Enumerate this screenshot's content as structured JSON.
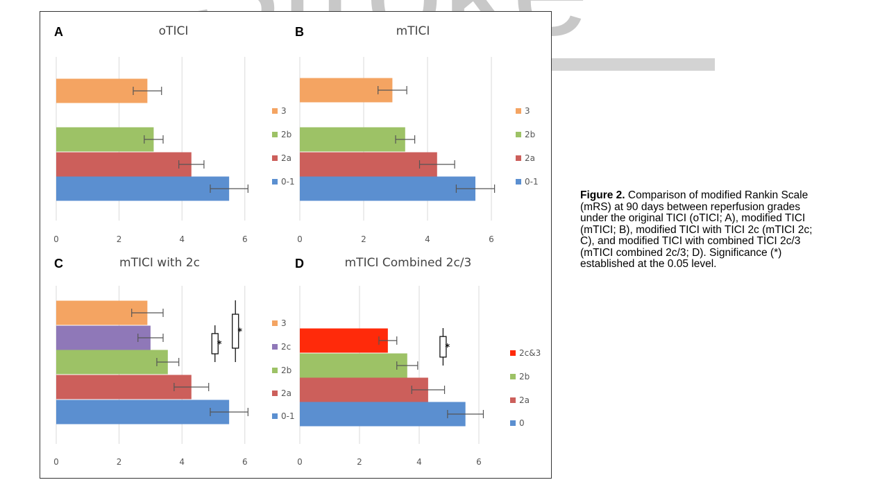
{
  "watermark": {
    "text": "Stroke"
  },
  "caption": {
    "label": "Figure 2.",
    "text": " Comparison of modified Rankin Scale (mRS) at 90 days between reperfusion grades under the original TICI (oTICI; A), modified TICI (mTICI; B), modified TICI with TICI 2c (mTICI 2c; C), and modified TICI with combined TICI 2c/3 (mTICI combined 2c/3; D). Significance (*) established at the 0.05 level."
  },
  "colors": {
    "c0_1": "#5b8fd0",
    "c2a": "#cc5f5b",
    "c2b": "#9dc266",
    "c2c": "#8f78b8",
    "c3": "#f4a462",
    "c2c3": "#ff2a0a",
    "grid": "#d9d9d9",
    "errorbar": "#555555"
  },
  "chart_data": [
    {
      "panel": "A",
      "title": "oTICI",
      "type": "bar",
      "orientation": "horizontal",
      "xlim": [
        0,
        6
      ],
      "xticks": [
        0,
        2,
        4,
        6
      ],
      "grid": true,
      "legend": "right",
      "bars": [
        {
          "label": "3",
          "value": 2.9,
          "error": 0.45,
          "color": "#f4a462"
        },
        {
          "label": "2b",
          "value": 3.1,
          "error": 0.3,
          "color": "#9dc266"
        },
        {
          "label": "2a",
          "value": 4.3,
          "error": 0.4,
          "color": "#cc5f5b"
        },
        {
          "label": "0-1",
          "value": 5.5,
          "error": 0.6,
          "color": "#5b8fd0"
        }
      ],
      "legend_entries": [
        {
          "label": "3",
          "color": "#f4a462"
        },
        {
          "label": "2b",
          "color": "#9dc266"
        },
        {
          "label": "2a",
          "color": "#cc5f5b"
        },
        {
          "label": "0-1",
          "color": "#5b8fd0"
        }
      ],
      "significance": []
    },
    {
      "panel": "B",
      "title": "mTICI",
      "type": "bar",
      "orientation": "horizontal",
      "xlim": [
        0,
        6
      ],
      "xticks": [
        0,
        2,
        4,
        6
      ],
      "grid": true,
      "legend": "right",
      "bars": [
        {
          "label": "3",
          "value": 2.9,
          "error": 0.45,
          "color": "#f4a462"
        },
        {
          "label": "2b",
          "value": 3.3,
          "error": 0.3,
          "color": "#9dc266"
        },
        {
          "label": "2a",
          "value": 4.3,
          "error": 0.55,
          "color": "#cc5f5b"
        },
        {
          "label": "0-1",
          "value": 5.5,
          "error": 0.6,
          "color": "#5b8fd0"
        }
      ],
      "legend_entries": [
        {
          "label": "3",
          "color": "#f4a462"
        },
        {
          "label": "2b",
          "color": "#9dc266"
        },
        {
          "label": "2a",
          "color": "#cc5f5b"
        },
        {
          "label": "0-1",
          "color": "#5b8fd0"
        }
      ],
      "significance": []
    },
    {
      "panel": "C",
      "title": "mTICI with 2c",
      "type": "bar",
      "orientation": "horizontal",
      "xlim": [
        0,
        6
      ],
      "xticks": [
        0,
        2,
        4,
        6
      ],
      "grid": true,
      "legend": "right",
      "bars": [
        {
          "label": "3",
          "value": 2.9,
          "error": 0.5,
          "color": "#f4a462"
        },
        {
          "label": "2c",
          "value": 3.0,
          "error": 0.4,
          "color": "#8f78b8"
        },
        {
          "label": "2b",
          "value": 3.55,
          "error": 0.35,
          "color": "#9dc266"
        },
        {
          "label": "2a",
          "value": 4.3,
          "error": 0.55,
          "color": "#cc5f5b"
        },
        {
          "label": "0-1",
          "value": 5.5,
          "error": 0.6,
          "color": "#5b8fd0"
        }
      ],
      "legend_entries": [
        {
          "label": "3",
          "color": "#f4a462"
        },
        {
          "label": "2c",
          "color": "#8f78b8"
        },
        {
          "label": "2b",
          "color": "#9dc266"
        },
        {
          "label": "2a",
          "color": "#cc5f5b"
        },
        {
          "label": "0-1",
          "color": "#5b8fd0"
        }
      ],
      "significance": [
        {
          "symbol": "*",
          "x": 5.05,
          "from": "2c",
          "to": "2b"
        },
        {
          "symbol": "*",
          "x": 5.7,
          "from": "3",
          "to": "2b"
        }
      ]
    },
    {
      "panel": "D",
      "title": "mTICI Combined 2c/3",
      "type": "bar",
      "orientation": "horizontal",
      "xlim": [
        0,
        6
      ],
      "xticks": [
        0,
        2,
        4,
        6
      ],
      "grid": true,
      "legend": "right",
      "bars": [
        {
          "label": "2c&3",
          "value": 2.95,
          "error": 0.3,
          "color": "#ff2a0a"
        },
        {
          "label": "2b",
          "value": 3.6,
          "error": 0.35,
          "color": "#9dc266"
        },
        {
          "label": "2a",
          "value": 4.3,
          "error": 0.55,
          "color": "#cc5f5b"
        },
        {
          "label": "0",
          "value": 5.55,
          "error": 0.6,
          "color": "#5b8fd0"
        }
      ],
      "legend_entries": [
        {
          "label": "2c&3",
          "color": "#ff2a0a"
        },
        {
          "label": "2b",
          "color": "#9dc266"
        },
        {
          "label": "2a",
          "color": "#cc5f5b"
        },
        {
          "label": "0",
          "color": "#5b8fd0"
        }
      ],
      "significance": [
        {
          "symbol": "*",
          "x": 4.8,
          "from": "2c&3",
          "to": "2b"
        }
      ]
    }
  ]
}
